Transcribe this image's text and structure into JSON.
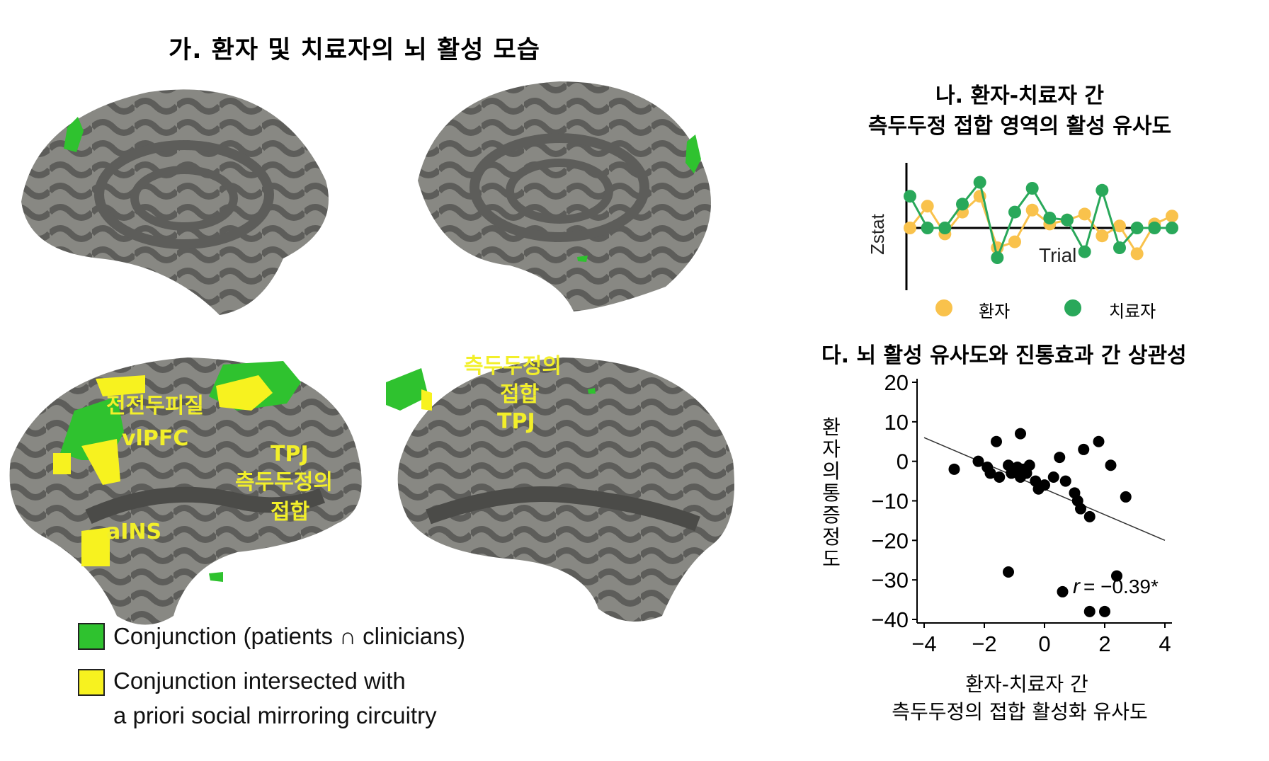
{
  "panel_ga": {
    "title": "가. 환자 및 치료자의 뇌 활성 모습",
    "annotations": {
      "frontal_ko": "전전두피질",
      "vlpfc": "vlPFC",
      "tpj_left": "TPJ",
      "tpj_ko_left_1": "측두두정의",
      "tpj_ko_left_2": "접합",
      "ains": "aINS",
      "tpj_ko_right_1": "측두두정의",
      "tpj_ko_right_2": "접합",
      "tpj_right": "TPJ"
    },
    "legend": [
      {
        "color": "#2fc22f",
        "label": "Conjunction (patients ∩ clinicians)"
      },
      {
        "color": "#f7f21f",
        "label_line1": "Conjunction intersected with",
        "label_line2": "a priori social mirroring circuitry"
      }
    ]
  },
  "panel_na": {
    "title_line1": "나. 환자-치료자 간",
    "title_line2": "측두두정 접합 영역의 활성 유사도",
    "ylabel": "Zstat",
    "xlabel": "Trial",
    "legend_patient": "환자",
    "legend_clinician": "치료자",
    "patient_color": "#f9c24c",
    "clinician_color": "#29a85a"
  },
  "panel_da": {
    "title": "다. 뇌 활성 유사도와 진통효과 간 상관성",
    "ylabel": "환자의 통증정도",
    "xlabel_line1": "환자-치료자 간",
    "xlabel_line2": "측두두정의 접합 활성화 유사도",
    "r_label": "r",
    "r_value": " = −0.39*"
  },
  "chart_data": [
    {
      "type": "line",
      "title": "나. 환자-치료자 간 측두두정 접합 영역의 활성 유사도",
      "xlabel": "Trial",
      "ylabel": "Zstat",
      "x": [
        1,
        2,
        3,
        4,
        5,
        6,
        7,
        8,
        9,
        10,
        11,
        12,
        13,
        14,
        15,
        16
      ],
      "series": [
        {
          "name": "환자",
          "values": [
            0.0,
            1.1,
            -0.3,
            0.8,
            1.6,
            -1.0,
            -0.7,
            0.9,
            0.2,
            0.4,
            0.7,
            -0.4,
            0.1,
            -1.3,
            0.2,
            0.6
          ]
        },
        {
          "name": "치료자",
          "values": [
            1.6,
            0.0,
            0.0,
            1.2,
            2.3,
            -1.5,
            0.8,
            2.0,
            0.5,
            0.4,
            -1.2,
            1.9,
            -1.0,
            0.0,
            0.0,
            0.0
          ]
        }
      ]
    },
    {
      "type": "scatter",
      "title": "다. 뇌 활성 유사도와 진통효과 간 상관성",
      "xlabel": "환자-치료자 간 측두두정의 접합 활성화 유사도",
      "ylabel": "환자의 통증정도",
      "xlim": [
        -4,
        4
      ],
      "ylim": [
        -40,
        20
      ],
      "xticks": [
        "−4",
        "−2",
        "0",
        "2",
        "4"
      ],
      "yticks": [
        "20",
        "10",
        "0",
        "−10",
        "−20",
        "−30",
        "−40"
      ],
      "points": [
        [
          -3.0,
          -2
        ],
        [
          -2.2,
          0
        ],
        [
          -1.9,
          -1.5
        ],
        [
          -1.8,
          -3
        ],
        [
          -1.6,
          5
        ],
        [
          -1.5,
          -4
        ],
        [
          -1.2,
          -1
        ],
        [
          -1.1,
          -3
        ],
        [
          -1.0,
          -2
        ],
        [
          -0.9,
          -1.5
        ],
        [
          -0.8,
          -4
        ],
        [
          -0.7,
          -2
        ],
        [
          -0.6,
          -3
        ],
        [
          -0.5,
          -1
        ],
        [
          -0.8,
          7
        ],
        [
          -0.3,
          -5
        ],
        [
          -0.2,
          -7
        ],
        [
          0.0,
          -6
        ],
        [
          0.3,
          -4
        ],
        [
          0.5,
          1
        ],
        [
          0.7,
          -5
        ],
        [
          1.0,
          -8
        ],
        [
          1.2,
          -12
        ],
        [
          1.3,
          3
        ],
        [
          1.1,
          -10
        ],
        [
          1.5,
          -14
        ],
        [
          1.8,
          5
        ],
        [
          2.2,
          -1
        ],
        [
          2.7,
          -9
        ],
        [
          -1.2,
          -28
        ],
        [
          0.6,
          -33
        ],
        [
          1.5,
          -38
        ],
        [
          2.0,
          -38
        ],
        [
          2.4,
          -29
        ]
      ],
      "trendline": [
        [
          -4,
          6
        ],
        [
          4,
          -20
        ]
      ],
      "annotation": "r = −0.39*"
    }
  ]
}
